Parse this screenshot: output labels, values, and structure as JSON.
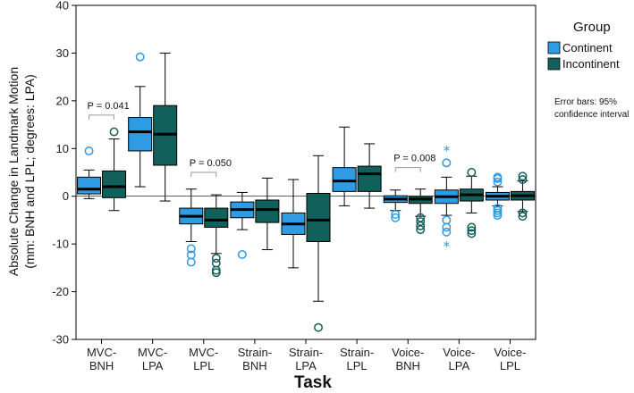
{
  "chart_data": {
    "type": "boxplot",
    "title": "",
    "xlabel": "Task",
    "ylabel_line1": "Absolute Change in Landmark Motion",
    "ylabel_line2": "(mm: BNH and LPL; degrees: LPA)",
    "ylim": [
      -30,
      40
    ],
    "yticks": [
      "-30",
      "-20",
      "-10",
      "0",
      "10",
      "20",
      "30",
      "40"
    ],
    "categories": [
      [
        "MVC-",
        "BNH"
      ],
      [
        "MVC-",
        "LPA"
      ],
      [
        "MVC-",
        "LPL"
      ],
      [
        "Strain-",
        "BNH"
      ],
      [
        "Strain-",
        "LPA"
      ],
      [
        "Strain-",
        "LPL"
      ],
      [
        "Voice-",
        "BNH"
      ],
      [
        "Voice-",
        "LPA"
      ],
      [
        "Voice-",
        "LPL"
      ]
    ],
    "legend": {
      "title": "Group",
      "entries": [
        {
          "name": "Continent",
          "color": "#2f9be3"
        },
        {
          "name": "Incontinent",
          "color": "#11605b"
        }
      ]
    },
    "note_lines": [
      "Error bars: 95%",
      "confidence interval"
    ],
    "series": [
      {
        "name": "Continent",
        "color": "#2f9be3",
        "boxes": [
          {
            "wlo": -0.5,
            "q1": 0.5,
            "med": 1.5,
            "q3": 4,
            "whi": 5.5,
            "circles": [
              9.5
            ],
            "stars": []
          },
          {
            "wlo": 2,
            "q1": 9.5,
            "med": 13.5,
            "q3": 16.5,
            "whi": 23,
            "circles": [
              29.2
            ],
            "stars": []
          },
          {
            "wlo": -9.5,
            "q1": -5.8,
            "med": -4.2,
            "q3": -2.5,
            "whi": 1.5,
            "circles": [
              -11,
              -12.3,
              -13.8
            ],
            "stars": []
          },
          {
            "wlo": -7,
            "q1": -4.5,
            "med": -2.8,
            "q3": -1.2,
            "whi": 0.8,
            "circles": [
              -12.2
            ],
            "stars": []
          },
          {
            "wlo": -15,
            "q1": -8,
            "med": -5.8,
            "q3": -3.5,
            "whi": 3.5,
            "circles": [],
            "stars": []
          },
          {
            "wlo": -2,
            "q1": 1,
            "med": 3.2,
            "q3": 6,
            "whi": 14.5,
            "circles": [],
            "stars": []
          },
          {
            "wlo": -3,
            "q1": -1.3,
            "med": -0.6,
            "q3": 0.1,
            "whi": 1.3,
            "circles": [
              -3.8,
              -4.5
            ],
            "stars": []
          },
          {
            "wlo": -4,
            "q1": -1.5,
            "med": -0.1,
            "q3": 1.3,
            "whi": 4,
            "circles": [
              7,
              -5,
              -6.5,
              -7.5
            ],
            "stars": [
              9.5,
              -10.5
            ]
          },
          {
            "wlo": -2,
            "q1": -0.8,
            "med": 0,
            "q3": 0.8,
            "whi": 2,
            "circles": [
              3,
              3.7,
              4,
              -2.5,
              -3,
              -3.5,
              -4
            ],
            "stars": []
          }
        ]
      },
      {
        "name": "Incontinent",
        "color": "#11605b",
        "boxes": [
          {
            "wlo": -3,
            "q1": -0.3,
            "med": 2,
            "q3": 5.3,
            "whi": 12,
            "circles": [
              13.5
            ],
            "stars": []
          },
          {
            "wlo": -1,
            "q1": 6.5,
            "med": 13,
            "q3": 19,
            "whi": 30,
            "circles": [],
            "stars": []
          },
          {
            "wlo": -12,
            "q1": -6.5,
            "med": -5,
            "q3": -2.5,
            "whi": 0.3,
            "circles": [
              -13,
              -14,
              -15.5,
              -16
            ],
            "stars": []
          },
          {
            "wlo": -11.2,
            "q1": -5.5,
            "med": -2.8,
            "q3": -0.8,
            "whi": 3.8,
            "circles": [],
            "stars": []
          },
          {
            "wlo": -22,
            "q1": -9.5,
            "med": -5,
            "q3": 0.6,
            "whi": 8.5,
            "circles": [
              -27.5
            ],
            "stars": []
          },
          {
            "wlo": -2.5,
            "q1": 1,
            "med": 4.7,
            "q3": 6.3,
            "whi": 11,
            "circles": [],
            "stars": []
          },
          {
            "wlo": -4.2,
            "q1": -1.5,
            "med": -0.6,
            "q3": 0,
            "whi": 1.5,
            "circles": [
              -4.5,
              -5.3,
              -6.2,
              -7
            ],
            "stars": []
          },
          {
            "wlo": -3.5,
            "q1": -1,
            "med": 0.3,
            "q3": 1.5,
            "whi": 4.2,
            "circles": [
              5,
              -6.5,
              -7.2,
              -7.8
            ],
            "stars": []
          },
          {
            "wlo": -3.2,
            "q1": -0.8,
            "med": 0.1,
            "q3": 1,
            "whi": 3.2,
            "circles": [
              3.5,
              4.2,
              -3.5,
              -4.2
            ],
            "stars": []
          }
        ]
      }
    ],
    "annotations": [
      {
        "text": "P = 0.041",
        "category_index": 0,
        "y": 17,
        "bracket_y": 17
      },
      {
        "text": "P = 0.050",
        "category_index": 2,
        "y": 5,
        "bracket_y": 5
      },
      {
        "text": "P = 0.008",
        "category_index": 6,
        "y": 6,
        "bracket_y": 6
      }
    ]
  }
}
